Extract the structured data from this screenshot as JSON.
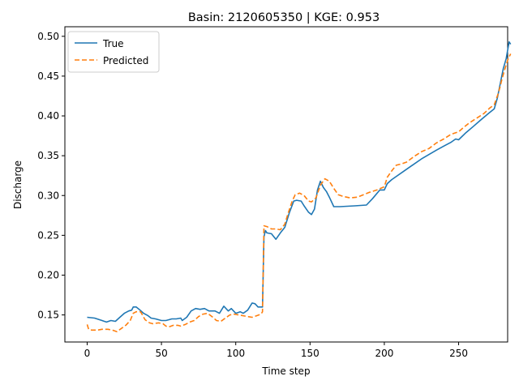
{
  "chart_data": {
    "type": "line",
    "title": "Basin: 2120605350  |  KGE: 0.953",
    "xlabel": "Time step",
    "ylabel": "Discharge",
    "xlim": [
      -15,
      283
    ],
    "ylim": [
      0.116,
      0.512
    ],
    "xticks": [
      0,
      50,
      100,
      150,
      200,
      250
    ],
    "yticks": [
      0.15,
      0.2,
      0.25,
      0.3,
      0.35,
      0.4,
      0.45,
      0.5
    ],
    "grid": false,
    "legend_position": "top-left",
    "series": [
      {
        "name": "True",
        "color": "#1f77b4",
        "dash": "solid",
        "points": [
          [
            0,
            0.147
          ],
          [
            5,
            0.146
          ],
          [
            10,
            0.143
          ],
          [
            13,
            0.141
          ],
          [
            16,
            0.143
          ],
          [
            19,
            0.142
          ],
          [
            22,
            0.147
          ],
          [
            25,
            0.152
          ],
          [
            28,
            0.155
          ],
          [
            30,
            0.156
          ],
          [
            31,
            0.16
          ],
          [
            33,
            0.16
          ],
          [
            35,
            0.157
          ],
          [
            38,
            0.152
          ],
          [
            41,
            0.149
          ],
          [
            43,
            0.146
          ],
          [
            46,
            0.145
          ],
          [
            50,
            0.143
          ],
          [
            53,
            0.143
          ],
          [
            55,
            0.144
          ],
          [
            57,
            0.145
          ],
          [
            60,
            0.145
          ],
          [
            63,
            0.146
          ],
          [
            64,
            0.143
          ],
          [
            67,
            0.147
          ],
          [
            70,
            0.155
          ],
          [
            73,
            0.158
          ],
          [
            76,
            0.157
          ],
          [
            79,
            0.158
          ],
          [
            82,
            0.155
          ],
          [
            86,
            0.155
          ],
          [
            89,
            0.152
          ],
          [
            92,
            0.161
          ],
          [
            95,
            0.155
          ],
          [
            97,
            0.158
          ],
          [
            100,
            0.152
          ],
          [
            103,
            0.154
          ],
          [
            105,
            0.152
          ],
          [
            108,
            0.156
          ],
          [
            111,
            0.165
          ],
          [
            113,
            0.164
          ],
          [
            115,
            0.16
          ],
          [
            118,
            0.16
          ],
          [
            119,
            0.248
          ],
          [
            120,
            0.256
          ],
          [
            121,
            0.253
          ],
          [
            124,
            0.252
          ],
          [
            127,
            0.245
          ],
          [
            130,
            0.253
          ],
          [
            133,
            0.26
          ],
          [
            136,
            0.278
          ],
          [
            139,
            0.293
          ],
          [
            141,
            0.294
          ],
          [
            144,
            0.293
          ],
          [
            146,
            0.287
          ],
          [
            149,
            0.279
          ],
          [
            151,
            0.276
          ],
          [
            153,
            0.283
          ],
          [
            155,
            0.307
          ],
          [
            157,
            0.318
          ],
          [
            159,
            0.31
          ],
          [
            161,
            0.305
          ],
          [
            163,
            0.298
          ],
          [
            166,
            0.286
          ],
          [
            170,
            0.286
          ],
          [
            180,
            0.287
          ],
          [
            188,
            0.288
          ],
          [
            192,
            0.296
          ],
          [
            197,
            0.307
          ],
          [
            200,
            0.307
          ],
          [
            202,
            0.315
          ],
          [
            205,
            0.32
          ],
          [
            215,
            0.333
          ],
          [
            225,
            0.346
          ],
          [
            235,
            0.357
          ],
          [
            240,
            0.362
          ],
          [
            245,
            0.367
          ],
          [
            248,
            0.371
          ],
          [
            250,
            0.37
          ],
          [
            255,
            0.379
          ],
          [
            260,
            0.387
          ],
          [
            265,
            0.395
          ],
          [
            270,
            0.403
          ],
          [
            274,
            0.409
          ],
          [
            276,
            0.422
          ],
          [
            278,
            0.44
          ],
          [
            280,
            0.459
          ],
          [
            282,
            0.472
          ],
          [
            284,
            0.493
          ],
          [
            285,
            0.49
          ]
        ]
      },
      {
        "name": "Predicted",
        "color": "#ff7f0e",
        "dash": "dashed",
        "points": [
          [
            0,
            0.138
          ],
          [
            1,
            0.132
          ],
          [
            3,
            0.131
          ],
          [
            7,
            0.131
          ],
          [
            10,
            0.132
          ],
          [
            14,
            0.132
          ],
          [
            17,
            0.131
          ],
          [
            20,
            0.129
          ],
          [
            23,
            0.133
          ],
          [
            26,
            0.137
          ],
          [
            29,
            0.143
          ],
          [
            31,
            0.152
          ],
          [
            33,
            0.154
          ],
          [
            36,
            0.154
          ],
          [
            39,
            0.144
          ],
          [
            42,
            0.14
          ],
          [
            44,
            0.139
          ],
          [
            48,
            0.14
          ],
          [
            51,
            0.139
          ],
          [
            53,
            0.136
          ],
          [
            55,
            0.135
          ],
          [
            58,
            0.137
          ],
          [
            61,
            0.137
          ],
          [
            63,
            0.136
          ],
          [
            66,
            0.138
          ],
          [
            69,
            0.141
          ],
          [
            72,
            0.143
          ],
          [
            75,
            0.148
          ],
          [
            78,
            0.151
          ],
          [
            81,
            0.152
          ],
          [
            84,
            0.148
          ],
          [
            87,
            0.143
          ],
          [
            90,
            0.142
          ],
          [
            93,
            0.146
          ],
          [
            96,
            0.15
          ],
          [
            99,
            0.151
          ],
          [
            102,
            0.15
          ],
          [
            105,
            0.149
          ],
          [
            108,
            0.148
          ],
          [
            111,
            0.147
          ],
          [
            114,
            0.149
          ],
          [
            117,
            0.151
          ],
          [
            118,
            0.154
          ],
          [
            119,
            0.262
          ],
          [
            121,
            0.261
          ],
          [
            124,
            0.258
          ],
          [
            127,
            0.258
          ],
          [
            130,
            0.257
          ],
          [
            133,
            0.264
          ],
          [
            135,
            0.276
          ],
          [
            138,
            0.293
          ],
          [
            140,
            0.301
          ],
          [
            143,
            0.303
          ],
          [
            146,
            0.3
          ],
          [
            149,
            0.293
          ],
          [
            151,
            0.292
          ],
          [
            154,
            0.297
          ],
          [
            157,
            0.313
          ],
          [
            160,
            0.321
          ],
          [
            163,
            0.318
          ],
          [
            166,
            0.309
          ],
          [
            169,
            0.301
          ],
          [
            172,
            0.299
          ],
          [
            177,
            0.297
          ],
          [
            182,
            0.298
          ],
          [
            186,
            0.301
          ],
          [
            190,
            0.304
          ],
          [
            195,
            0.307
          ],
          [
            200,
            0.311
          ],
          [
            202,
            0.323
          ],
          [
            205,
            0.331
          ],
          [
            208,
            0.338
          ],
          [
            212,
            0.34
          ],
          [
            215,
            0.342
          ],
          [
            220,
            0.349
          ],
          [
            225,
            0.355
          ],
          [
            230,
            0.359
          ],
          [
            235,
            0.366
          ],
          [
            240,
            0.371
          ],
          [
            245,
            0.377
          ],
          [
            250,
            0.38
          ],
          [
            253,
            0.385
          ],
          [
            257,
            0.391
          ],
          [
            262,
            0.397
          ],
          [
            267,
            0.403
          ],
          [
            271,
            0.41
          ],
          [
            274,
            0.414
          ],
          [
            277,
            0.43
          ],
          [
            279,
            0.445
          ],
          [
            281,
            0.458
          ],
          [
            283,
            0.47
          ],
          [
            285,
            0.478
          ]
        ]
      }
    ]
  }
}
